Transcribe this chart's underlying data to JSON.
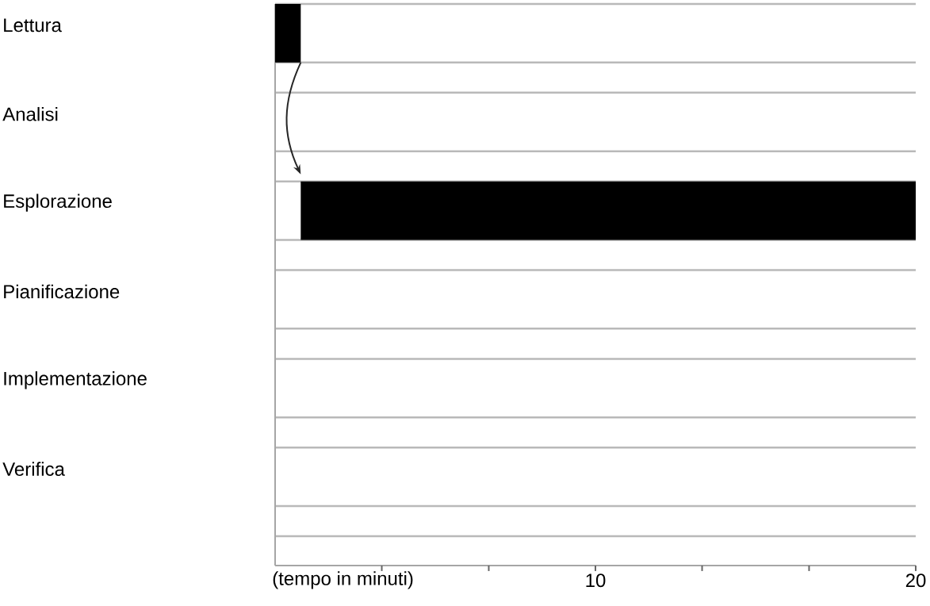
{
  "chart_data": {
    "type": "bar",
    "orientation": "horizontal",
    "categories": [
      "Lettura",
      "Analisi",
      "Esplorazione",
      "Pianificazione",
      "Implementazione",
      "Verifica"
    ],
    "values": [
      0.8,
      null,
      19.2,
      null,
      null,
      null
    ],
    "base": [
      0,
      null,
      0.8,
      null,
      null,
      null
    ],
    "color": "#000000",
    "xlabel": "(tempo in minuti)",
    "xlim": [
      0,
      20
    ],
    "xticks": [
      {
        "value": 3.33,
        "label": null
      },
      {
        "value": 6.67,
        "label": null
      },
      10,
      {
        "value": 13.33,
        "label": null
      },
      {
        "value": 16.67,
        "label": null
      },
      20
    ],
    "grid": "y"
  }
}
